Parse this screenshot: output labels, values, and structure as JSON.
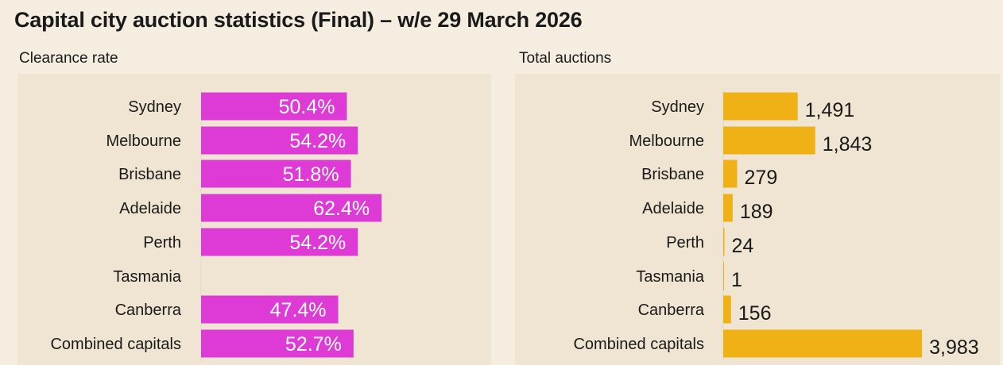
{
  "title": "Capital city auction statistics (Final) – w/e 29 March 2026",
  "colors": {
    "background": "#f5ede0",
    "panel": "#efe5d2",
    "clearance_bar": "#dd3ad6",
    "auctions_bar": "#f0b116"
  },
  "chart_data": [
    {
      "type": "bar",
      "orientation": "horizontal",
      "title": "Clearance rate",
      "categories": [
        "Sydney",
        "Melbourne",
        "Brisbane",
        "Adelaide",
        "Perth",
        "Tasmania",
        "Canberra",
        "Combined capitals"
      ],
      "values": [
        50.4,
        54.2,
        51.8,
        62.4,
        54.2,
        null,
        47.4,
        52.7
      ],
      "labels": [
        "50.4%",
        "54.2%",
        "51.8%",
        "62.4%",
        "54.2%",
        "",
        "47.4%",
        "52.7%"
      ],
      "unit": "%",
      "grid": false,
      "legend": "none"
    },
    {
      "type": "bar",
      "orientation": "horizontal",
      "title": "Total auctions",
      "categories": [
        "Sydney",
        "Melbourne",
        "Brisbane",
        "Adelaide",
        "Perth",
        "Tasmania",
        "Canberra",
        "Combined capitals"
      ],
      "values": [
        1491,
        1843,
        279,
        189,
        24,
        1,
        156,
        3983
      ],
      "labels": [
        "1,491",
        "1,843",
        "279",
        "189",
        "24",
        "1",
        "156",
        "3,983"
      ],
      "grid": false,
      "legend": "none"
    }
  ]
}
